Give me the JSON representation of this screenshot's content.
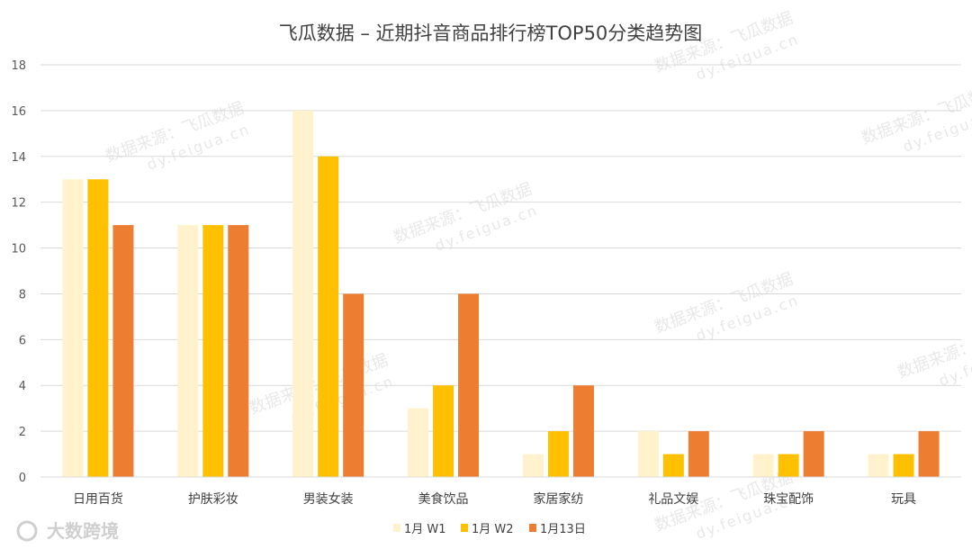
{
  "chart_data": {
    "type": "bar",
    "title": "飞瓜数据 – 近期抖音商品排行榜TOP50分类趋势图",
    "categories": [
      "日用百货",
      "护肤彩妆",
      "男装女装",
      "美食饮品",
      "家居家纺",
      "礼品文娱",
      "珠宝配饰",
      "玩具"
    ],
    "series": [
      {
        "name": "1月 W1",
        "color": "#FFF2CC",
        "values": [
          13,
          11,
          16,
          3,
          1,
          2,
          1,
          1
        ]
      },
      {
        "name": "1月 W2",
        "color": "#FFC000",
        "values": [
          13,
          11,
          14,
          4,
          2,
          1,
          1,
          1
        ]
      },
      {
        "name": "1月13日",
        "color": "#ED7D31",
        "values": [
          11,
          11,
          8,
          8,
          4,
          2,
          2,
          2
        ]
      }
    ],
    "ylim": [
      0,
      18
    ],
    "yticks": [
      0,
      2,
      4,
      6,
      8,
      10,
      12,
      14,
      16,
      18
    ],
    "grid": true,
    "legend_position": "bottom"
  },
  "watermark": {
    "text": "数据来源：飞瓜数据",
    "url": "dy.feigua.cn"
  },
  "brand": {
    "text": "大数跨境"
  }
}
